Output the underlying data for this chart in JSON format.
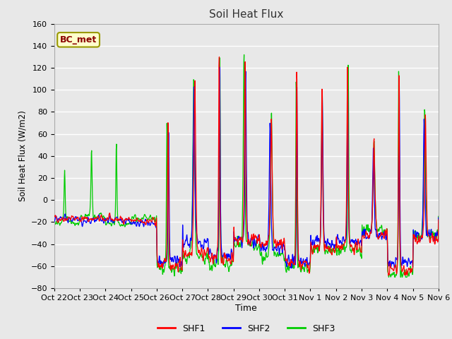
{
  "title": "Soil Heat Flux",
  "ylabel": "Soil Heat Flux (W/m2)",
  "xlabel": "Time",
  "annotation": "BC_met",
  "ylim": [
    -80,
    160
  ],
  "yticks": [
    -80,
    -60,
    -40,
    -20,
    0,
    20,
    40,
    60,
    80,
    100,
    120,
    140,
    160
  ],
  "xtick_labels": [
    "Oct 22",
    "Oct 23",
    "Oct 24",
    "Oct 25",
    "Oct 26",
    "Oct 27",
    "Oct 28",
    "Oct 29",
    "Oct 30",
    "Oct 31",
    "Nov 1",
    "Nov 2",
    "Nov 3",
    "Nov 4",
    "Nov 5",
    "Nov 6"
  ],
  "colors": {
    "SHF1": "#ff0000",
    "SHF2": "#0000ff",
    "SHF3": "#00cc00"
  },
  "bg_color": "#e8e8e8",
  "grid_color": "#ffffff",
  "n_days": 15,
  "pts_per_day": 96,
  "day_peak_heights": [
    0,
    0,
    0,
    0,
    82,
    117,
    148,
    138,
    84,
    130,
    109,
    135,
    55,
    135,
    83
  ],
  "day_trough_depths": [
    0,
    0,
    0,
    0,
    -62,
    -45,
    -52,
    -38,
    -42,
    -62,
    -42,
    -42,
    -32,
    -62,
    -35
  ],
  "peak_width_factor": [
    0,
    0,
    0,
    0,
    0.12,
    0.18,
    0.1,
    0.14,
    0.16,
    0.1,
    0.14,
    0.1,
    0.18,
    0.1,
    0.16
  ]
}
